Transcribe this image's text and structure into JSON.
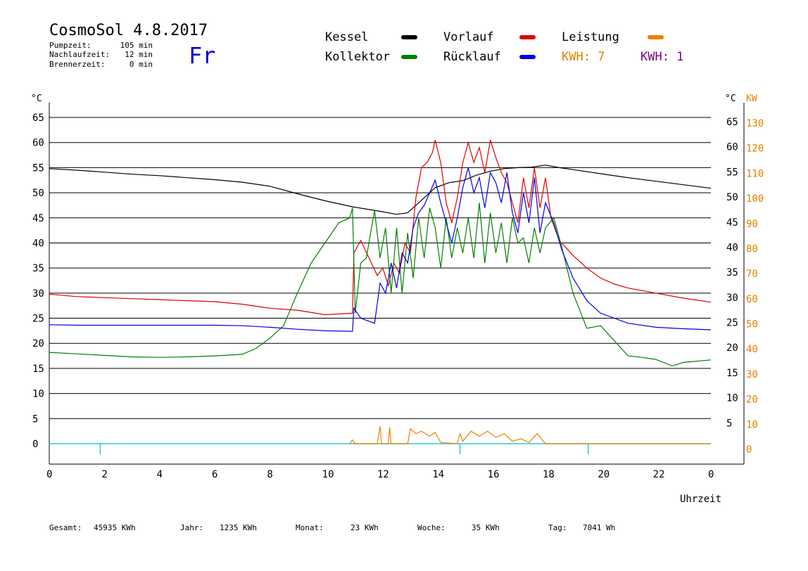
{
  "header": {
    "title": "CosmoSol 4.8.2017",
    "day": "Fr",
    "info": [
      {
        "label": "Pumpzeit:",
        "value": "105 min"
      },
      {
        "label": "Nachlaufzeit:",
        "value": "12 min"
      },
      {
        "label": "Brennerzeit:",
        "value": "0 min"
      }
    ]
  },
  "legend": [
    {
      "label": "Kessel",
      "color": "#000000"
    },
    {
      "label": "Vorlauf",
      "color": "#e00000"
    },
    {
      "label": "Leistung",
      "color": "#f08000"
    },
    {
      "label": "Kollektor",
      "color": "#008000"
    },
    {
      "label": "Rücklauf",
      "color": "#0000e0"
    }
  ],
  "kwh_labels": [
    {
      "text": "KWH: 7",
      "color": "#e08000"
    },
    {
      "text": "KWH: 1",
      "color": "#800080"
    }
  ],
  "footer": [
    {
      "label": "Gesamt:",
      "value": "45935 KWh"
    },
    {
      "label": "Jahr:",
      "value": "1235 KWh"
    },
    {
      "label": "Monat:",
      "value": "23 KWh"
    },
    {
      "label": "Woche:",
      "value": "35 KWh"
    },
    {
      "label": "Tag:",
      "value": "7041 Wh"
    }
  ],
  "chart_data": {
    "type": "line",
    "xlabel": "Uhrzeit",
    "ylabel_left": "°C",
    "ylabel_right": "°C",
    "ylabel_right2": "KW",
    "x_ticks": [
      "0",
      "2",
      "4",
      "6",
      "8",
      "10",
      "12",
      "14",
      "16",
      "18",
      "20",
      "22",
      "0"
    ],
    "y_ticks_left": [
      0,
      5,
      10,
      15,
      20,
      25,
      30,
      35,
      40,
      45,
      50,
      55,
      60,
      65
    ],
    "y_ticks_right": [
      5,
      10,
      15,
      20,
      25,
      30,
      35,
      40,
      45,
      50,
      55,
      60,
      65
    ],
    "y_ticks_kw": [
      0,
      10,
      20,
      30,
      40,
      50,
      60,
      70,
      80,
      90,
      100,
      110,
      120,
      130
    ],
    "xlim": [
      0,
      24
    ],
    "ylim": [
      0,
      65
    ],
    "grid": true,
    "series": [
      {
        "name": "Kessel",
        "color": "#000000",
        "points": [
          [
            0,
            54.8
          ],
          [
            1,
            54.5
          ],
          [
            2,
            54.1
          ],
          [
            3,
            53.7
          ],
          [
            4,
            53.4
          ],
          [
            5,
            53.0
          ],
          [
            6,
            52.6
          ],
          [
            7,
            52.1
          ],
          [
            8,
            51.3
          ],
          [
            9,
            49.8
          ],
          [
            10,
            48.4
          ],
          [
            11,
            47.2
          ],
          [
            12,
            46.3
          ],
          [
            12.6,
            45.7
          ],
          [
            13,
            46.0
          ],
          [
            13.5,
            48.5
          ],
          [
            14,
            51.0
          ],
          [
            14.5,
            52.0
          ],
          [
            15,
            52.4
          ],
          [
            15.5,
            53.5
          ],
          [
            16,
            54.3
          ],
          [
            16.5,
            54.8
          ],
          [
            17,
            55.0
          ],
          [
            17.5,
            55.1
          ],
          [
            18,
            55.5
          ],
          [
            18.5,
            55.0
          ],
          [
            19,
            54.6
          ],
          [
            20,
            53.8
          ],
          [
            21,
            53.0
          ],
          [
            22,
            52.3
          ],
          [
            23,
            51.6
          ],
          [
            24,
            50.9
          ]
        ]
      },
      {
        "name": "Vorlauf",
        "color": "#e00000",
        "points": [
          [
            0,
            29.8
          ],
          [
            1,
            29.3
          ],
          [
            2,
            29.1
          ],
          [
            3,
            28.9
          ],
          [
            4,
            28.7
          ],
          [
            5,
            28.5
          ],
          [
            6,
            28.3
          ],
          [
            7,
            27.8
          ],
          [
            8,
            27.0
          ],
          [
            9,
            26.6
          ],
          [
            10,
            25.7
          ],
          [
            11,
            26.0
          ],
          [
            11.05,
            38.0
          ],
          [
            11.3,
            40.5
          ],
          [
            11.6,
            37.0
          ],
          [
            11.9,
            33.5
          ],
          [
            12.1,
            35.0
          ],
          [
            12.3,
            31.5
          ],
          [
            12.5,
            36.0
          ],
          [
            12.7,
            34.0
          ],
          [
            12.9,
            40.0
          ],
          [
            13.1,
            38.0
          ],
          [
            13.3,
            49.0
          ],
          [
            13.5,
            55.0
          ],
          [
            13.7,
            56.0
          ],
          [
            13.9,
            58.0
          ],
          [
            14.0,
            60.5
          ],
          [
            14.2,
            56.0
          ],
          [
            14.4,
            48.0
          ],
          [
            14.6,
            44.0
          ],
          [
            14.8,
            49.0
          ],
          [
            15.0,
            56.0
          ],
          [
            15.2,
            60.0
          ],
          [
            15.4,
            56.0
          ],
          [
            15.6,
            59.0
          ],
          [
            15.8,
            54.0
          ],
          [
            16.0,
            60.5
          ],
          [
            16.2,
            57.0
          ],
          [
            16.4,
            54.0
          ],
          [
            16.6,
            52.0
          ],
          [
            16.8,
            48.0
          ],
          [
            17.0,
            44.0
          ],
          [
            17.2,
            53.0
          ],
          [
            17.4,
            47.0
          ],
          [
            17.6,
            55.0
          ],
          [
            17.8,
            47.0
          ],
          [
            18.0,
            53.0
          ],
          [
            18.2,
            45.0
          ],
          [
            18.5,
            40.5
          ],
          [
            19,
            37.5
          ],
          [
            19.5,
            35.0
          ],
          [
            20,
            33.0
          ],
          [
            20.5,
            31.8
          ],
          [
            21,
            31.0
          ],
          [
            22,
            30.0
          ],
          [
            23,
            29.0
          ],
          [
            24,
            28.2
          ]
        ]
      },
      {
        "name": "Kollektor",
        "color": "#008000",
        "points": [
          [
            0,
            18.2
          ],
          [
            1,
            17.9
          ],
          [
            2,
            17.6
          ],
          [
            3,
            17.3
          ],
          [
            4,
            17.2
          ],
          [
            5,
            17.3
          ],
          [
            6,
            17.5
          ],
          [
            7,
            17.8
          ],
          [
            7.5,
            19.0
          ],
          [
            8,
            21.0
          ],
          [
            8.5,
            23.5
          ],
          [
            9,
            30.0
          ],
          [
            9.5,
            36.0
          ],
          [
            10,
            40.0
          ],
          [
            10.5,
            44.0
          ],
          [
            10.9,
            45.0
          ],
          [
            11.0,
            47.0
          ],
          [
            11.1,
            26.0
          ],
          [
            11.3,
            36.0
          ],
          [
            11.5,
            37.0
          ],
          [
            11.8,
            46.5
          ],
          [
            12.0,
            37.0
          ],
          [
            12.2,
            43.0
          ],
          [
            12.4,
            30.0
          ],
          [
            12.6,
            43.0
          ],
          [
            12.8,
            30.0
          ],
          [
            13.0,
            42.0
          ],
          [
            13.2,
            33.0
          ],
          [
            13.4,
            45.0
          ],
          [
            13.6,
            37.0
          ],
          [
            13.8,
            47.0
          ],
          [
            14.0,
            43.0
          ],
          [
            14.2,
            35.0
          ],
          [
            14.4,
            45.0
          ],
          [
            14.6,
            37.0
          ],
          [
            14.8,
            43.0
          ],
          [
            15.0,
            38.0
          ],
          [
            15.2,
            45.0
          ],
          [
            15.4,
            37.0
          ],
          [
            15.6,
            48.0
          ],
          [
            15.8,
            36.0
          ],
          [
            16.0,
            46.0
          ],
          [
            16.2,
            38.0
          ],
          [
            16.4,
            44.0
          ],
          [
            16.6,
            36.0
          ],
          [
            16.8,
            45.0
          ],
          [
            17.0,
            40.0
          ],
          [
            17.2,
            41.0
          ],
          [
            17.4,
            36.0
          ],
          [
            17.6,
            43.0
          ],
          [
            17.8,
            38.0
          ],
          [
            18.0,
            43.0
          ],
          [
            18.3,
            45.0
          ],
          [
            18.6,
            39.0
          ],
          [
            19,
            30.0
          ],
          [
            19.5,
            23.0
          ],
          [
            20,
            23.5
          ],
          [
            20.5,
            20.5
          ],
          [
            21,
            17.5
          ],
          [
            21.5,
            17.2
          ],
          [
            22,
            16.8
          ],
          [
            22.6,
            15.5
          ],
          [
            23,
            16.2
          ],
          [
            24,
            16.7
          ]
        ]
      },
      {
        "name": "Rücklauf",
        "color": "#0000e0",
        "points": [
          [
            0,
            23.7
          ],
          [
            1,
            23.6
          ],
          [
            2,
            23.6
          ],
          [
            3,
            23.6
          ],
          [
            4,
            23.6
          ],
          [
            5,
            23.6
          ],
          [
            6,
            23.6
          ],
          [
            7,
            23.5
          ],
          [
            8,
            23.2
          ],
          [
            9,
            22.8
          ],
          [
            10,
            22.5
          ],
          [
            11,
            22.4
          ],
          [
            11.05,
            27.0
          ],
          [
            11.3,
            25.0
          ],
          [
            11.8,
            24.0
          ],
          [
            12.0,
            32.0
          ],
          [
            12.2,
            30.0
          ],
          [
            12.4,
            36.0
          ],
          [
            12.6,
            31.0
          ],
          [
            12.8,
            38.0
          ],
          [
            13.0,
            36.0
          ],
          [
            13.2,
            43.0
          ],
          [
            13.4,
            46.0
          ],
          [
            13.6,
            47.5
          ],
          [
            13.8,
            50.0
          ],
          [
            14.0,
            52.5
          ],
          [
            14.2,
            48.0
          ],
          [
            14.4,
            44.0
          ],
          [
            14.6,
            40.0
          ],
          [
            14.8,
            45.0
          ],
          [
            15.0,
            51.0
          ],
          [
            15.2,
            55.0
          ],
          [
            15.4,
            50.0
          ],
          [
            15.6,
            53.0
          ],
          [
            15.8,
            47.0
          ],
          [
            16.0,
            54.0
          ],
          [
            16.2,
            52.0
          ],
          [
            16.4,
            48.0
          ],
          [
            16.6,
            54.0
          ],
          [
            16.8,
            46.0
          ],
          [
            17.0,
            42.0
          ],
          [
            17.2,
            50.0
          ],
          [
            17.4,
            44.0
          ],
          [
            17.6,
            53.0
          ],
          [
            17.8,
            42.0
          ],
          [
            18.0,
            48.0
          ],
          [
            18.3,
            44.0
          ],
          [
            18.6,
            38.5
          ],
          [
            19,
            33.0
          ],
          [
            19.5,
            28.5
          ],
          [
            20,
            26.0
          ],
          [
            21,
            24.0
          ],
          [
            22,
            23.2
          ],
          [
            23,
            22.9
          ],
          [
            24,
            22.7
          ]
        ]
      },
      {
        "name": "Leistung",
        "color": "#f08000",
        "unit": "KW",
        "points": [
          [
            10.9,
            0
          ],
          [
            11.0,
            1.5
          ],
          [
            11.1,
            0
          ],
          [
            11.9,
            0
          ],
          [
            12.0,
            7
          ],
          [
            12.05,
            0
          ],
          [
            12.3,
            0
          ],
          [
            12.35,
            6.5
          ],
          [
            12.4,
            0
          ],
          [
            13.0,
            0
          ],
          [
            13.1,
            6.0
          ],
          [
            13.3,
            4.0
          ],
          [
            13.5,
            5.0
          ],
          [
            13.8,
            3.0
          ],
          [
            14.0,
            4.5
          ],
          [
            14.2,
            0.5
          ],
          [
            14.8,
            0
          ],
          [
            14.9,
            4.0
          ],
          [
            15.0,
            1.0
          ],
          [
            15.3,
            5.0
          ],
          [
            15.6,
            3.0
          ],
          [
            15.9,
            5.0
          ],
          [
            16.2,
            2.5
          ],
          [
            16.5,
            4.0
          ],
          [
            16.8,
            1.0
          ],
          [
            17.1,
            2.0
          ],
          [
            17.4,
            0.5
          ],
          [
            17.7,
            4.0
          ],
          [
            18.0,
            0
          ],
          [
            24,
            0
          ]
        ]
      }
    ]
  }
}
